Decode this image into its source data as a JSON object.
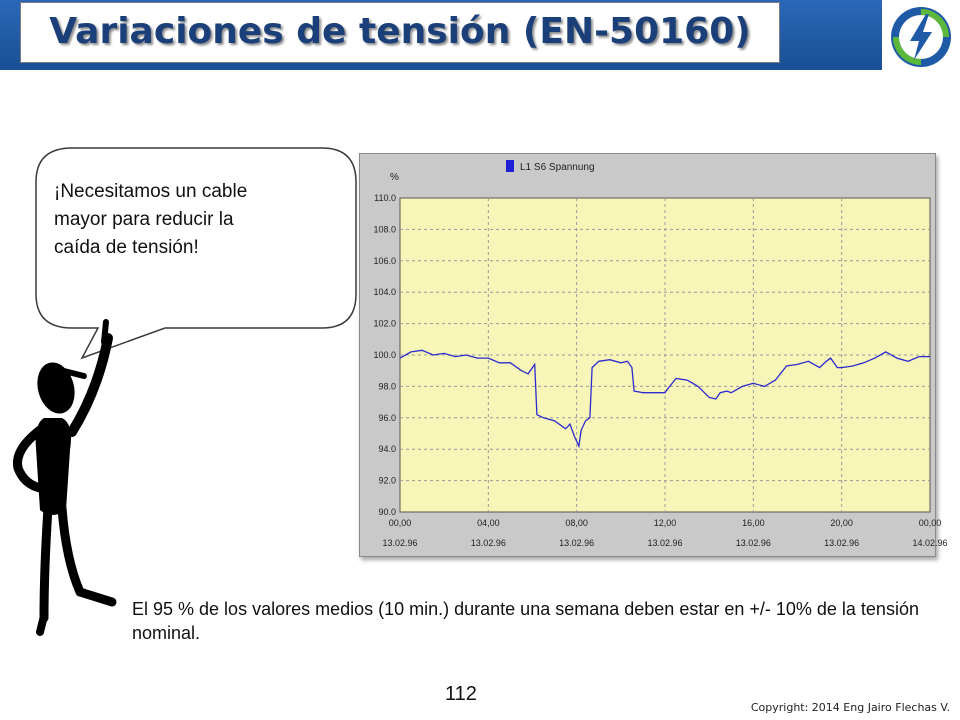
{
  "header": {
    "title": "Variaciones de tensión (EN-50160)",
    "bar_color": "#1f5aa6",
    "logo_icon": "lightning-bolt-icon"
  },
  "bubble": {
    "text": "¡Necesitamos un cable mayor para reducir la caída de tensión!"
  },
  "body_text": "El 95 % de los valores medios (10 min.) durante una semana deben estar en +/- 10% de la tensión nominal.",
  "page_number": "112",
  "copyright": "Copyright: 2014 Eng Jairo Flechas V.",
  "chart_data": {
    "type": "line",
    "ylabel": "%",
    "legend": "L1 S6 Spannung",
    "legend_color": "#1f1fd6",
    "line_color": "#2b2bd0",
    "plot_background": "#f8f5b8",
    "ylim": [
      90,
      110
    ],
    "yticks": [
      "110.0",
      "108.0",
      "106.0",
      "104.0",
      "102.0",
      "100.0",
      "98.0",
      "96.0",
      "94.0",
      "92.0",
      "90.0"
    ],
    "xlim": [
      0,
      24
    ],
    "xticks": [
      {
        "time": "00,00",
        "date": "13.02.96"
      },
      {
        "time": "04,00",
        "date": "13.02.96"
      },
      {
        "time": "08,00",
        "date": "13.02.96"
      },
      {
        "time": "12,00",
        "date": "13.02.96"
      },
      {
        "time": "16,00",
        "date": "13.02.96"
      },
      {
        "time": "20,00",
        "date": "13.02.96"
      },
      {
        "time": "00,00",
        "date": "14.02.96"
      }
    ],
    "series": [
      {
        "name": "L1 S6 Spannung",
        "x": [
          0,
          0.5,
          1,
          1.5,
          2,
          2.5,
          3,
          3.5,
          4,
          4.5,
          5,
          5.5,
          5.8,
          6.1,
          6.2,
          6.5,
          7,
          7.5,
          7.7,
          7.9,
          8.1,
          8.2,
          8.4,
          8.6,
          8.7,
          9,
          9.5,
          10,
          10.3,
          10.5,
          10.6,
          11,
          11.5,
          12,
          12.1,
          12.5,
          13,
          13.5,
          14,
          14.3,
          14.5,
          14.8,
          15,
          15.5,
          16,
          16.5,
          17,
          17.5,
          18,
          18.5,
          19,
          19.3,
          19.5,
          19.8,
          20,
          20.5,
          21,
          21.5,
          22,
          22.5,
          23,
          23.5,
          24
        ],
        "y": [
          99.8,
          100.2,
          100.3,
          100.0,
          100.1,
          99.9,
          100.0,
          99.8,
          99.8,
          99.5,
          99.5,
          99.0,
          98.8,
          99.4,
          96.2,
          96.0,
          95.8,
          95.3,
          95.6,
          94.8,
          94.2,
          95.2,
          95.8,
          96.0,
          99.2,
          99.6,
          99.7,
          99.5,
          99.6,
          99.2,
          97.7,
          97.6,
          97.6,
          97.6,
          97.8,
          98.5,
          98.4,
          98.0,
          97.3,
          97.2,
          97.6,
          97.7,
          97.6,
          98.0,
          98.2,
          98.0,
          98.4,
          99.3,
          99.4,
          99.6,
          99.2,
          99.6,
          99.8,
          99.2,
          99.2,
          99.3,
          99.5,
          99.8,
          100.2,
          99.8,
          99.6,
          99.9,
          99.9
        ]
      }
    ]
  }
}
